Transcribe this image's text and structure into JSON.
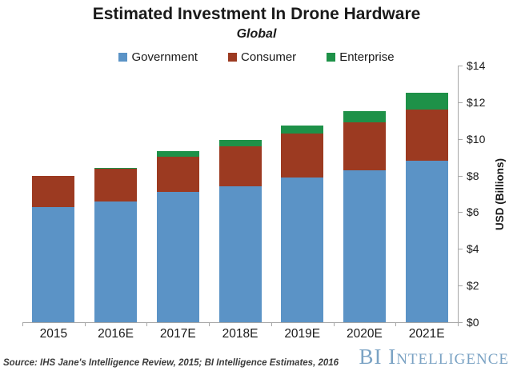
{
  "chart_data": {
    "type": "bar",
    "stacked": true,
    "title": "Estimated Investment In Drone Hardware",
    "subtitle": "Global",
    "categories": [
      "2015",
      "2016E",
      "2017E",
      "2018E",
      "2019E",
      "2020E",
      "2021E"
    ],
    "series": [
      {
        "name": "Government",
        "color": "#5b93c6",
        "values": [
          6.3,
          6.6,
          7.1,
          7.4,
          7.9,
          8.3,
          8.8
        ]
      },
      {
        "name": "Consumer",
        "color": "#9c3a21",
        "values": [
          1.7,
          1.8,
          1.9,
          2.2,
          2.4,
          2.6,
          2.8
        ]
      },
      {
        "name": "Enterprise",
        "color": "#1e9148",
        "values": [
          0,
          0.05,
          0.3,
          0.35,
          0.45,
          0.6,
          0.9
        ]
      }
    ],
    "totals": [
      8.0,
      8.45,
      9.3,
      9.95,
      10.75,
      11.5,
      12.5
    ],
    "xlabel": "",
    "ylabel": "USD (Billions)",
    "ylim": [
      0,
      14
    ],
    "ytick_step": 2,
    "ytick_labels": [
      "$0",
      "$2",
      "$4",
      "$6",
      "$8",
      "$10",
      "$12",
      "$14"
    ],
    "grid": false,
    "legend_position": "top",
    "axis_color": "#a6a6a6"
  },
  "footer": {
    "source": "Source: IHS Jane's Intelligence Review, 2015; BI Intelligence Estimates, 2016",
    "brand": "BI Intelligence"
  }
}
